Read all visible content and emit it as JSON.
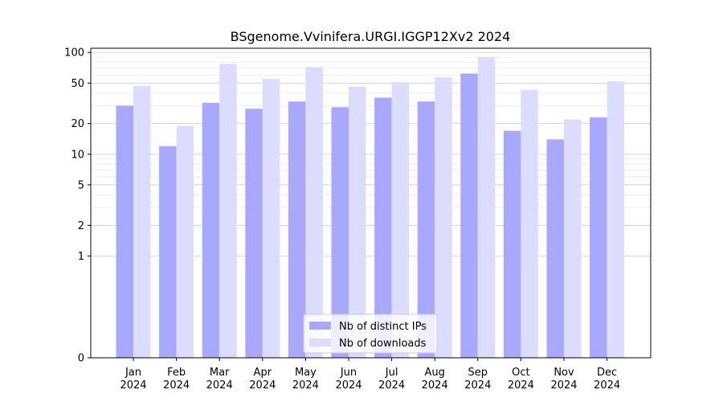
{
  "chart_data": {
    "type": "bar",
    "title": "BSgenome.Vvinifera.URGI.IGGP12Xv2 2024",
    "xlabel": "",
    "ylabel": "",
    "y_scale": "symlog",
    "ylim": [
      0,
      110
    ],
    "y_ticks": [
      0,
      1,
      2,
      5,
      10,
      20,
      50,
      100
    ],
    "grid": true,
    "legend_position": "bottom-center",
    "categories": [
      [
        "Jan",
        "2024"
      ],
      [
        "Feb",
        "2024"
      ],
      [
        "Mar",
        "2024"
      ],
      [
        "Apr",
        "2024"
      ],
      [
        "May",
        "2024"
      ],
      [
        "Jun",
        "2024"
      ],
      [
        "Jul",
        "2024"
      ],
      [
        "Aug",
        "2024"
      ],
      [
        "Sep",
        "2024"
      ],
      [
        "Oct",
        "2024"
      ],
      [
        "Nov",
        "2024"
      ],
      [
        "Dec",
        "2024"
      ]
    ],
    "series": [
      {
        "name": "Nb of distinct IPs",
        "color": "#a8a8ff",
        "values": [
          30,
          12,
          32,
          28,
          33,
          29,
          36,
          33,
          62,
          17,
          14,
          23
        ]
      },
      {
        "name": "Nb of downloads",
        "color": "#dcdcff",
        "values": [
          47,
          19,
          77,
          55,
          72,
          46,
          51,
          57,
          90,
          43,
          22,
          52
        ]
      }
    ]
  }
}
